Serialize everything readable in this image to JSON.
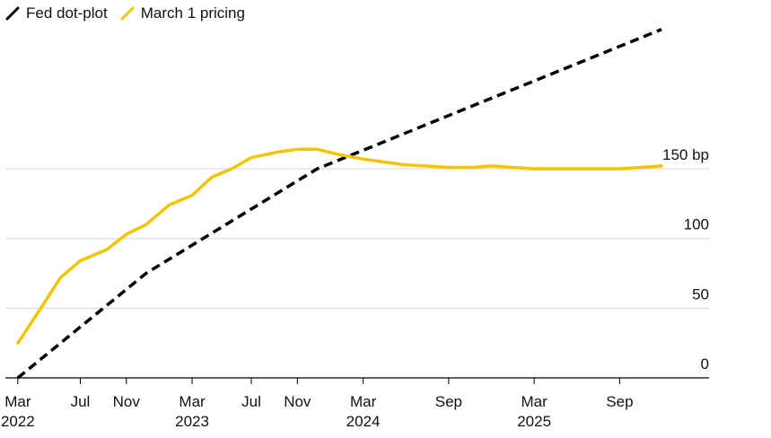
{
  "chart_data": {
    "type": "line",
    "title": "",
    "xlabel": "",
    "ylabel": "",
    "ylim": [
      0,
      250
    ],
    "yticks": [
      0,
      50,
      100,
      150
    ],
    "ytick_labels": [
      "0",
      "50",
      "100",
      "150 bp"
    ],
    "grid": true,
    "legend_position": "top-left",
    "x_range": [
      "2022-03-01",
      "2025-12-15"
    ],
    "xticks": [
      {
        "date": "2022-03-16",
        "label": "Mar",
        "year": "2022"
      },
      {
        "date": "2022-07-27",
        "label": "Jul",
        "year": ""
      },
      {
        "date": "2022-11-02",
        "label": "Nov",
        "year": ""
      },
      {
        "date": "2023-03-22",
        "label": "Mar",
        "year": "2023"
      },
      {
        "date": "2023-07-26",
        "label": "Jul",
        "year": ""
      },
      {
        "date": "2023-11-01",
        "label": "Nov",
        "year": ""
      },
      {
        "date": "2024-03-20",
        "label": "Mar",
        "year": "2024"
      },
      {
        "date": "2024-09-18",
        "label": "Sep",
        "year": ""
      },
      {
        "date": "2025-03-19",
        "label": "Mar",
        "year": "2025"
      },
      {
        "date": "2025-09-17",
        "label": "Sep",
        "year": ""
      }
    ],
    "series": [
      {
        "name": "Fed dot-plot",
        "color": "#000000",
        "style": "dashed",
        "points": [
          [
            "2022-03-16",
            0
          ],
          [
            "2022-12-14",
            75
          ],
          [
            "2023-12-13",
            150
          ],
          [
            "2025-12-15",
            250
          ]
        ]
      },
      {
        "name": "March 1 pricing",
        "color": "#F5C400",
        "style": "solid",
        "points": [
          [
            "2022-03-16",
            25
          ],
          [
            "2022-05-04",
            50
          ],
          [
            "2022-06-15",
            72
          ],
          [
            "2022-07-27",
            84
          ],
          [
            "2022-09-21",
            92
          ],
          [
            "2022-11-02",
            103
          ],
          [
            "2022-12-14",
            110
          ],
          [
            "2023-02-01",
            124
          ],
          [
            "2023-03-22",
            131
          ],
          [
            "2023-05-03",
            144
          ],
          [
            "2023-06-14",
            150
          ],
          [
            "2023-07-26",
            158
          ],
          [
            "2023-09-20",
            162
          ],
          [
            "2023-11-01",
            164
          ],
          [
            "2023-12-13",
            164
          ],
          [
            "2024-01-31",
            160
          ],
          [
            "2024-03-20",
            157
          ],
          [
            "2024-05-01",
            155
          ],
          [
            "2024-06-12",
            153
          ],
          [
            "2024-07-31",
            152
          ],
          [
            "2024-09-18",
            151
          ],
          [
            "2024-11-07",
            151
          ],
          [
            "2024-12-18",
            152
          ],
          [
            "2025-03-19",
            150
          ],
          [
            "2025-06-18",
            150
          ],
          [
            "2025-09-17",
            150
          ],
          [
            "2025-12-15",
            152
          ]
        ]
      }
    ]
  }
}
